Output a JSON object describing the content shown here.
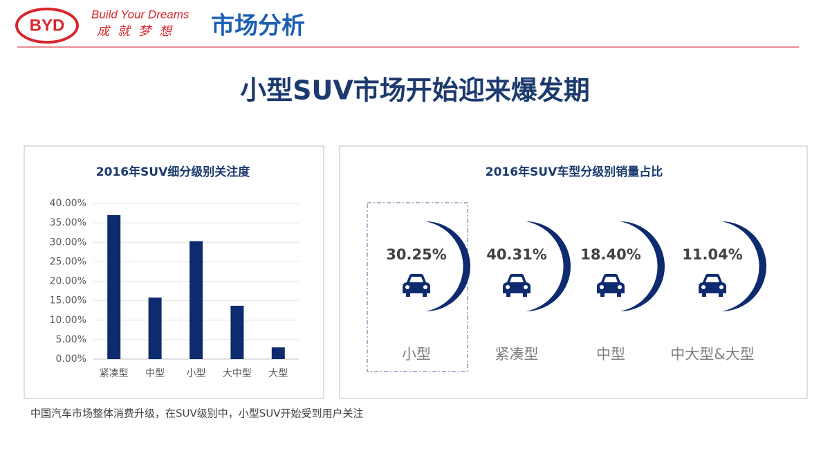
{
  "header": {
    "logo": "BYD",
    "tagline": "Build Your Dreams",
    "slogan": "成就梦想",
    "section": "市场分析"
  },
  "title": "小型SUV市场开始迎来爆发期",
  "chart_data": [
    {
      "type": "bar",
      "title": "2016年SUV细分级别关注度",
      "categories": [
        "紧凑型",
        "中型",
        "小型",
        "大中型",
        "大型"
      ],
      "values": [
        37.0,
        15.8,
        30.3,
        13.7,
        3.0
      ],
      "color": "#0d2b6e",
      "ylim": [
        0,
        40
      ],
      "yticks": [
        {
          "value": 0,
          "label": "0.00%"
        },
        {
          "value": 5,
          "label": "5.00%"
        },
        {
          "value": 10,
          "label": "10.00%"
        },
        {
          "value": 15,
          "label": "15.00%"
        },
        {
          "value": 20,
          "label": "20.00%"
        },
        {
          "value": 25,
          "label": "25.00%"
        },
        {
          "value": 30,
          "label": "30.00%"
        },
        {
          "value": 35,
          "label": "35.00%"
        },
        {
          "value": 40,
          "label": "40.00%"
        }
      ],
      "grid": true
    },
    {
      "type": "gauge",
      "title": "2016年SUV车型分级别销量占比",
      "categories": [
        "小型",
        "紧凑型",
        "中型",
        "中大型&大型"
      ],
      "values": [
        30.25,
        40.31,
        18.4,
        11.04
      ],
      "value_labels": [
        "30.25%",
        "40.31%",
        "18.40%",
        "11.04%"
      ],
      "color": "#0d2b6e"
    }
  ],
  "note": "中国汽车市场整体消费升级，在SUV级别中，小型SUV开始受到用户关注"
}
